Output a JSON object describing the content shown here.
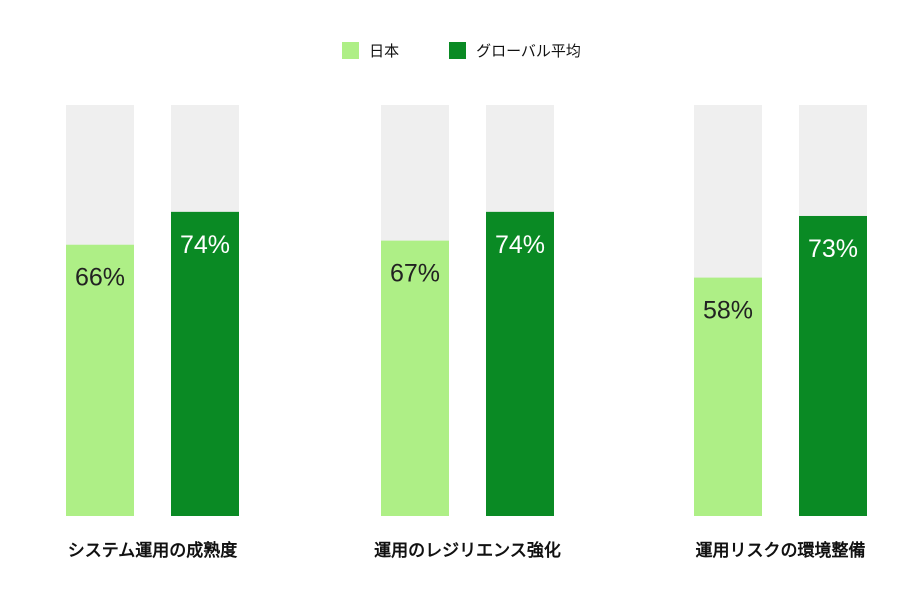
{
  "chart_data": {
    "type": "bar",
    "categories": [
      "システム運用の成熟度",
      "運用のレジリエンス強化",
      "運用リスクの環境整備"
    ],
    "series": [
      {
        "name": "日本",
        "values": [
          66,
          67,
          58
        ],
        "labels": [
          "66%",
          "67%",
          "58%"
        ],
        "color": "#aeef86"
      },
      {
        "name": "グローバル平均",
        "values": [
          74,
          74,
          73
        ],
        "labels": [
          "74%",
          "74%",
          "73%"
        ],
        "color": "#0a8a24"
      }
    ],
    "ylim": [
      0,
      100
    ],
    "track_color": "#efefef",
    "label_colors": [
      "#222222",
      "#ffffff"
    ],
    "legend_position": "top-center",
    "grid": false
  }
}
